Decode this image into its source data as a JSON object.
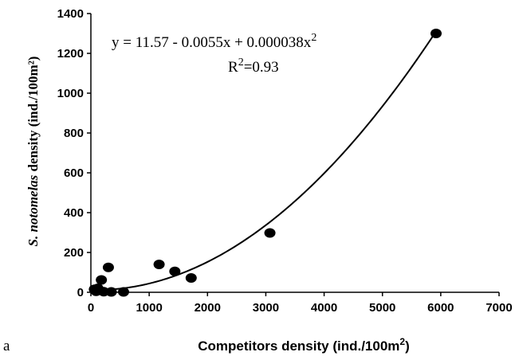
{
  "chart_data": {
    "type": "scatter",
    "panel_label": "a",
    "xlabel": "Competitors density (ind./100m",
    "xlabel_sup": "2",
    "xlabel_end": ")",
    "ylabel_italic": "S. notomelas",
    "ylabel_rest": " density (ind./100m²)",
    "xlim": [
      0,
      7000
    ],
    "ylim": [
      0,
      1400
    ],
    "xticks": [
      "0",
      "1000",
      "2000",
      "3000",
      "4000",
      "5000",
      "6000",
      "7000"
    ],
    "yticks": [
      "0",
      "200",
      "400",
      "600",
      "800",
      "1000",
      "1200",
      "1400"
    ],
    "points": [
      {
        "x": 60,
        "y": 15
      },
      {
        "x": 90,
        "y": 5
      },
      {
        "x": 120,
        "y": 20
      },
      {
        "x": 180,
        "y": 62
      },
      {
        "x": 220,
        "y": 3
      },
      {
        "x": 300,
        "y": 125
      },
      {
        "x": 350,
        "y": 2
      },
      {
        "x": 560,
        "y": 2
      },
      {
        "x": 1170,
        "y": 140
      },
      {
        "x": 1440,
        "y": 105
      },
      {
        "x": 1720,
        "y": 72
      },
      {
        "x": 3070,
        "y": 298
      },
      {
        "x": 5920,
        "y": 1300
      }
    ],
    "fit": {
      "a": 11.57,
      "b": -0.0055,
      "c": 3.8e-05,
      "x_from": 150,
      "x_to": 5920
    },
    "equation_text": "y = 11.57 - 0.0055x + 0.000038x",
    "equation_sup": "2",
    "r2_prefix": "R",
    "r2_sup": "2",
    "r2_value": "=0.93"
  }
}
